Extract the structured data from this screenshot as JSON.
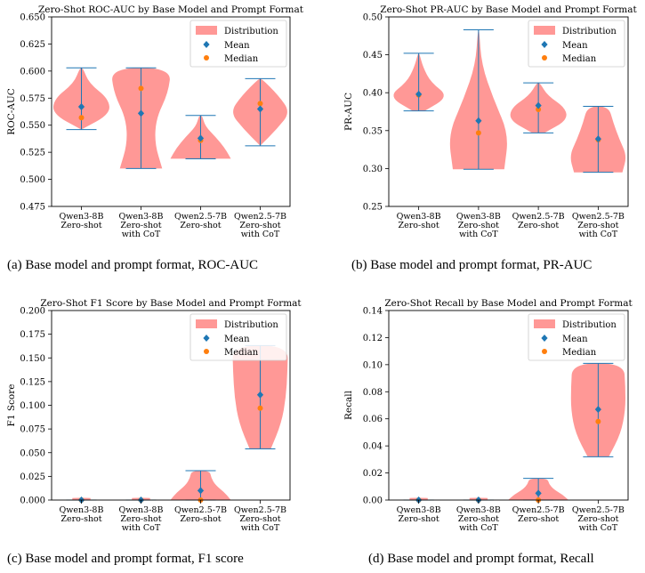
{
  "legend": {
    "distribution": "Distribution",
    "mean": "Mean",
    "median": "Median"
  },
  "colors": {
    "violin": "#ff9896",
    "line": "#1f77b4",
    "mean": "#1f77b4",
    "median": "#ff7f0e"
  },
  "captions": [
    "(a) Base model and prompt format, ROC-AUC",
    "(b) Base model and prompt format, PR-AUC",
    "(c) Base model and prompt format, F1 score",
    "(d) Base model and prompt format, Recall"
  ],
  "chart_data": [
    {
      "type": "violin",
      "title": "Zero-Shot ROC-AUC by Base Model and Prompt Format",
      "ylabel": "ROC-AUC",
      "ylim": [
        0.475,
        0.65
      ],
      "yticks": [
        "0.475",
        "0.500",
        "0.525",
        "0.550",
        "0.575",
        "0.600",
        "0.625",
        "0.650"
      ],
      "legend_position": "top-right",
      "categories": [
        [
          "Qwen3-8B",
          "Zero-shot"
        ],
        [
          "Qwen3-8B",
          "Zero-shot",
          "with CoT"
        ],
        [
          "Qwen2.5-7B",
          "Zero-shot"
        ],
        [
          "Qwen2.5-7B",
          "Zero-shot",
          "with CoT"
        ]
      ],
      "min": [
        0.546,
        0.51,
        0.519,
        0.531
      ],
      "max": [
        0.603,
        0.603,
        0.559,
        0.593
      ],
      "mean": [
        0.567,
        0.561,
        0.538,
        0.565
      ],
      "median": [
        0.557,
        0.584,
        0.536,
        0.57
      ],
      "shapes": [
        [
          0.0,
          0.95,
          0.9,
          0.25,
          0.05
        ],
        [
          0.7,
          0.45,
          0.5,
          0.9,
          1.0
        ],
        [
          1.0,
          0.8,
          0.5,
          0.15,
          0.05
        ],
        [
          0.0,
          0.55,
          1.0,
          0.6,
          0.05
        ]
      ]
    },
    {
      "type": "violin",
      "title": "Zero-Shot PR-AUC by Base Model and Prompt Format",
      "ylabel": "PR-AUC",
      "ylim": [
        0.25,
        0.5
      ],
      "yticks": [
        "0.25",
        "0.30",
        "0.35",
        "0.40",
        "0.45",
        "0.50"
      ],
      "legend_position": "top-right",
      "categories": [
        [
          "Qwen3-8B",
          "Zero-shot"
        ],
        [
          "Qwen3-8B",
          "Zero-shot",
          "with CoT"
        ],
        [
          "Qwen2.5-7B",
          "Zero-shot"
        ],
        [
          "Qwen2.5-7B",
          "Zero-shot",
          "with CoT"
        ]
      ],
      "min": [
        0.376,
        0.299,
        0.347,
        0.295
      ],
      "max": [
        0.452,
        0.483,
        0.413,
        0.382
      ],
      "mean": [
        0.398,
        0.363,
        0.383,
        0.339
      ],
      "median": [
        0.397,
        0.347,
        0.378,
        0.338
      ],
      "shapes": [
        [
          0.2,
          1.0,
          0.4,
          0.15,
          0.02
        ],
        [
          0.85,
          1.0,
          0.5,
          0.1,
          0.02
        ],
        [
          0.2,
          0.95,
          0.9,
          0.3,
          0.05
        ],
        [
          0.8,
          0.95,
          0.7,
          0.5,
          0.35
        ]
      ]
    },
    {
      "type": "violin",
      "title": "Zero-Shot F1 Score by Base Model and Prompt Format",
      "ylabel": "F1 Score",
      "ylim": [
        0.0,
        0.2
      ],
      "yticks": [
        "0.000",
        "0.025",
        "0.050",
        "0.075",
        "0.100",
        "0.125",
        "0.150",
        "0.175",
        "0.200"
      ],
      "legend_position": "top-right",
      "categories": [
        [
          "Qwen3-8B",
          "Zero-shot"
        ],
        [
          "Qwen3-8B",
          "Zero-shot",
          "with CoT"
        ],
        [
          "Qwen2.5-7B",
          "Zero-shot"
        ],
        [
          "Qwen2.5-7B",
          "Zero-shot",
          "with CoT"
        ]
      ],
      "min": [
        0.0,
        0.0,
        0.0,
        0.054
      ],
      "max": [
        0.0,
        0.0,
        0.031,
        0.163
      ],
      "mean": [
        0.0,
        0.0,
        0.01,
        0.111
      ],
      "median": [
        0.0,
        0.0,
        0.0,
        0.097
      ],
      "shapes": [
        [
          0.3,
          0.3,
          0.3,
          0.3,
          0.3
        ],
        [
          0.3,
          0.3,
          0.3,
          0.3,
          0.3
        ],
        [
          1.0,
          0.8,
          0.5,
          0.35,
          0.3
        ],
        [
          0.35,
          0.7,
          0.85,
          0.9,
          0.92
        ]
      ]
    },
    {
      "type": "violin",
      "title": "Zero-Shot Recall by Base Model and Prompt Format",
      "ylabel": "Recall",
      "ylim": [
        0.0,
        0.14
      ],
      "yticks": [
        "0.00",
        "0.02",
        "0.04",
        "0.06",
        "0.08",
        "0.10",
        "0.12",
        "0.14"
      ],
      "legend_position": "top-right",
      "categories": [
        [
          "Qwen3-8B",
          "Zero-shot"
        ],
        [
          "Qwen3-8B",
          "Zero-shot",
          "with CoT"
        ],
        [
          "Qwen2.5-7B",
          "Zero-shot"
        ],
        [
          "Qwen2.5-7B",
          "Zero-shot",
          "with CoT"
        ]
      ],
      "min": [
        0.0,
        0.0,
        0.0,
        0.032
      ],
      "max": [
        0.0,
        0.0,
        0.016,
        0.101
      ],
      "mean": [
        0.0,
        0.0,
        0.005,
        0.067
      ],
      "median": [
        0.0,
        0.0,
        0.0,
        0.058
      ],
      "shapes": [
        [
          0.3,
          0.3,
          0.3,
          0.3,
          0.3
        ],
        [
          0.3,
          0.3,
          0.3,
          0.3,
          0.3
        ],
        [
          1.0,
          0.8,
          0.5,
          0.35,
          0.3
        ],
        [
          0.35,
          0.75,
          0.9,
          0.9,
          0.85
        ]
      ]
    }
  ]
}
